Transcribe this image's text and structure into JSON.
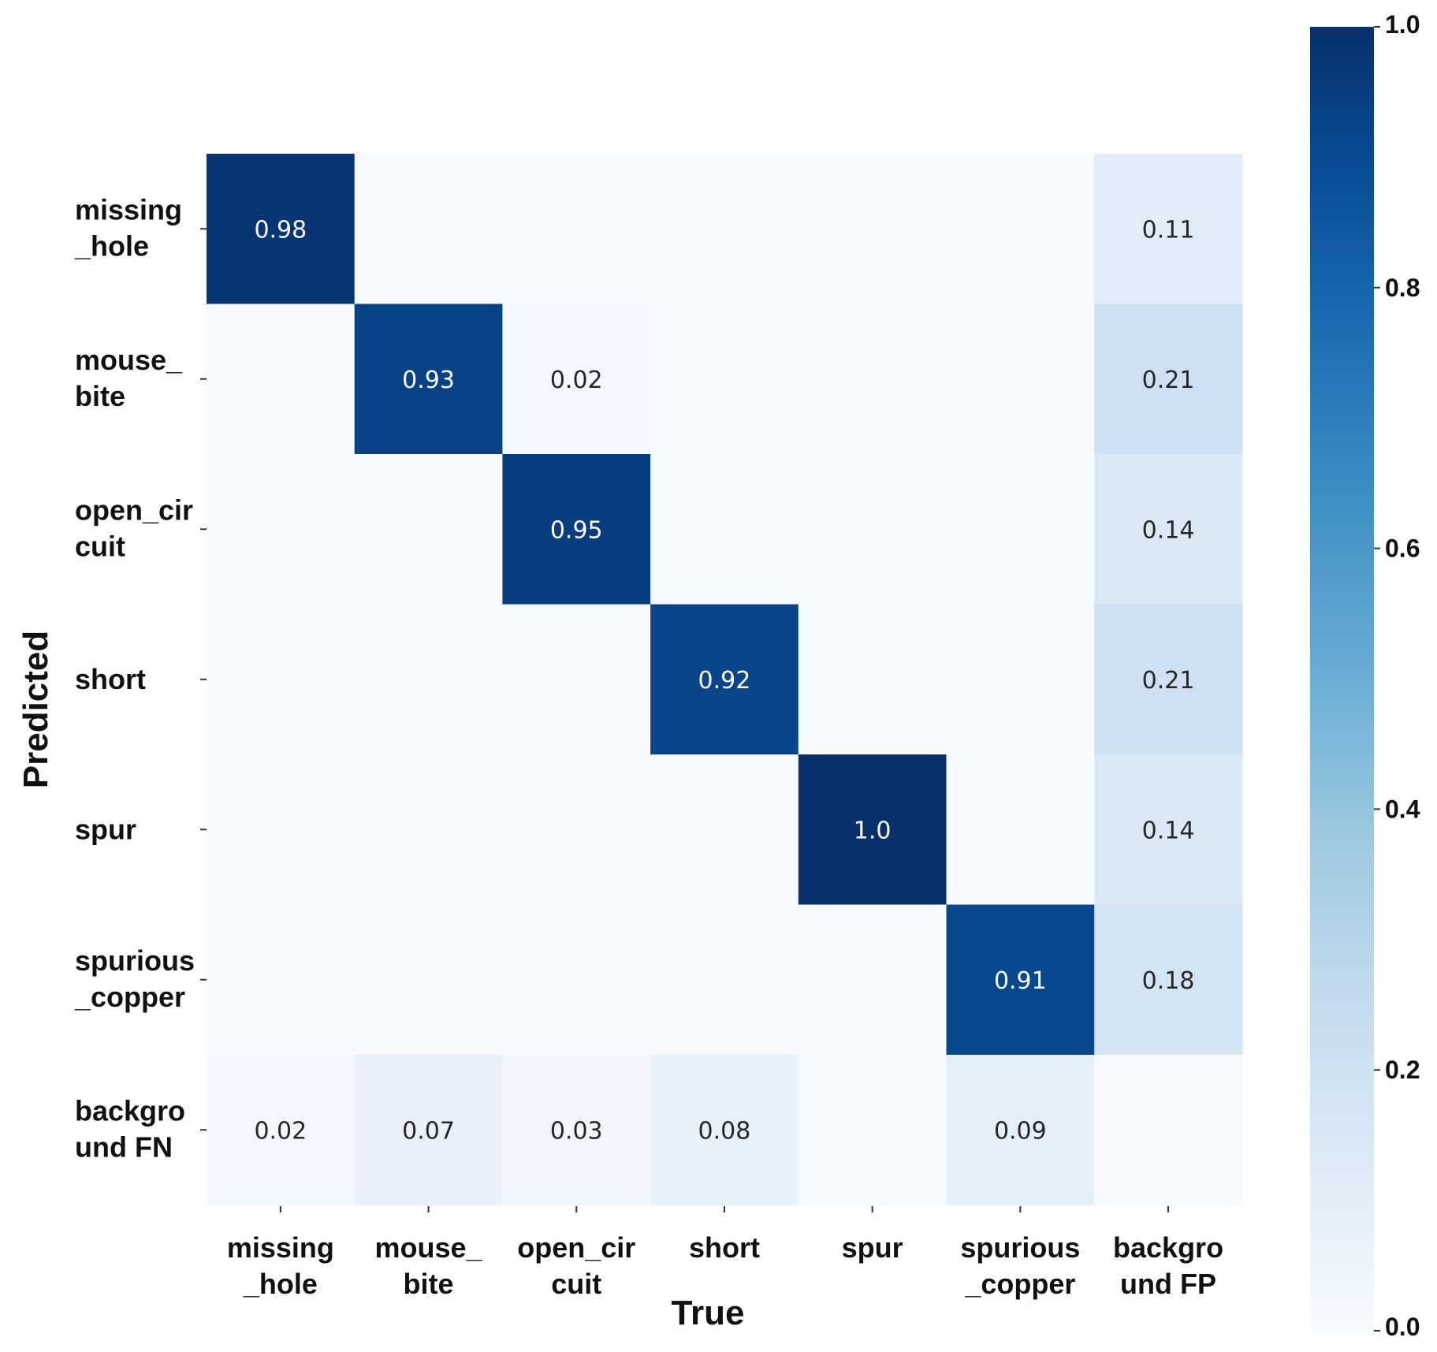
{
  "chart_data": {
    "type": "heatmap",
    "xlabel": "True",
    "ylabel": "Predicted",
    "row_labels": [
      [
        "missing",
        "_hole"
      ],
      [
        "mouse_",
        "bite"
      ],
      [
        "open_cir",
        "cuit"
      ],
      [
        "short"
      ],
      [
        "spur"
      ],
      [
        "spurious",
        "_copper"
      ],
      [
        "backgro",
        "und FN"
      ]
    ],
    "col_labels": [
      [
        "missing",
        "_hole"
      ],
      [
        "mouse_",
        "bite"
      ],
      [
        "open_cir",
        "cuit"
      ],
      [
        "short"
      ],
      [
        "spur"
      ],
      [
        "spurious",
        "_copper"
      ],
      [
        "backgro",
        "und FP"
      ]
    ],
    "matrix": [
      [
        0.98,
        null,
        null,
        null,
        null,
        null,
        0.11
      ],
      [
        null,
        0.93,
        0.02,
        null,
        null,
        null,
        0.21
      ],
      [
        null,
        null,
        0.95,
        null,
        null,
        null,
        0.14
      ],
      [
        null,
        null,
        null,
        0.92,
        null,
        null,
        0.21
      ],
      [
        null,
        null,
        null,
        null,
        1.0,
        null,
        0.14
      ],
      [
        null,
        null,
        null,
        null,
        null,
        0.91,
        0.18
      ],
      [
        0.02,
        0.07,
        0.03,
        0.08,
        null,
        0.09,
        null
      ]
    ],
    "matrix_text": [
      [
        "0.98",
        "",
        "",
        "",
        "",
        "",
        "0.11"
      ],
      [
        "",
        "0.93",
        "0.02",
        "",
        "",
        "",
        "0.21"
      ],
      [
        "",
        "",
        "0.95",
        "",
        "",
        "",
        "0.14"
      ],
      [
        "",
        "",
        "",
        "0.92",
        "",
        "",
        "0.21"
      ],
      [
        "",
        "",
        "",
        "",
        "1.0",
        "",
        "0.14"
      ],
      [
        "",
        "",
        "",
        "",
        "",
        "0.91",
        "0.18"
      ],
      [
        "0.02",
        "0.07",
        "0.03",
        "0.08",
        "",
        "0.09",
        ""
      ]
    ],
    "colorbar": {
      "range": [
        0.0,
        1.0
      ],
      "ticks": [
        "1.0",
        "0.8",
        "0.6",
        "0.4",
        "0.2",
        "0.0"
      ],
      "tick_values": [
        1.0,
        0.8,
        0.6,
        0.4,
        0.2,
        0.0
      ]
    },
    "colormap": "Blues",
    "colors": {
      "stops": [
        "#f7fbff",
        "#deebf7",
        "#c6dbef",
        "#9ecae1",
        "#6baed6",
        "#4292c6",
        "#2171b5",
        "#08519c",
        "#08306b"
      ],
      "text_dark": "#262626",
      "text_light": "#ffffff"
    }
  }
}
